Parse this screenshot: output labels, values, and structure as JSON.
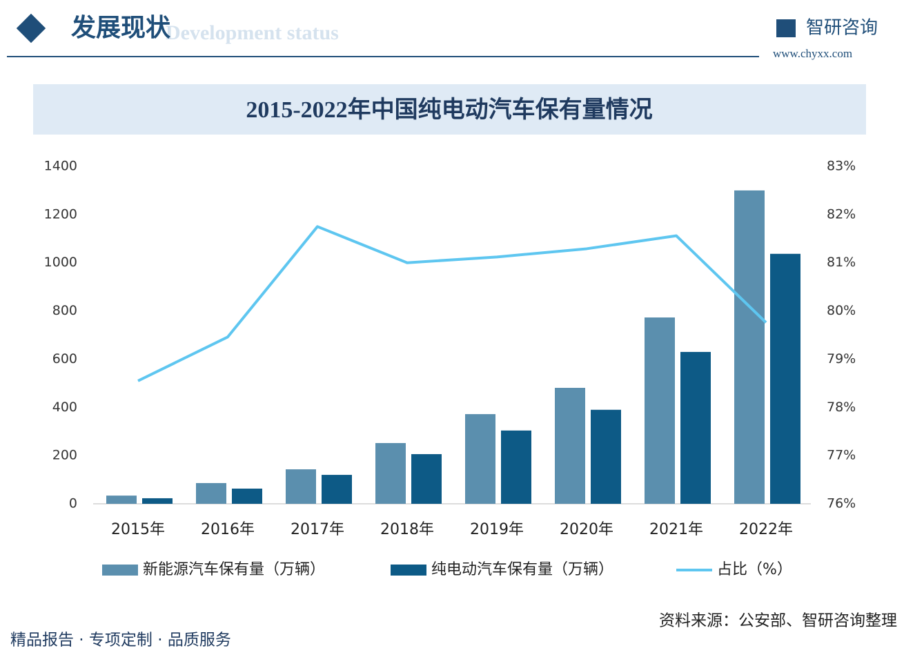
{
  "header": {
    "title": "发展现状",
    "subtitle_en": "Development status",
    "brand": "智研咨询",
    "website": "www.chyxx.com"
  },
  "chart_data": {
    "type": "bar",
    "title": "2015-2022年中国纯电动汽车保有量情况",
    "categories": [
      "2015年",
      "2016年",
      "2017年",
      "2018年",
      "2019年",
      "2020年",
      "2021年",
      "2022年"
    ],
    "series": [
      {
        "name": "新能源汽车保有量（万辆）",
        "type": "bar",
        "color": "#5b8fae",
        "values": [
          34,
          86,
          143,
          252,
          372,
          481,
          773,
          1300
        ]
      },
      {
        "name": "纯电动汽车保有量（万辆）",
        "type": "bar",
        "color": "#0d5a86",
        "values": [
          23,
          63,
          120,
          206,
          304,
          390,
          630,
          1037
        ]
      },
      {
        "name": "占比（%）",
        "type": "line",
        "axis": "y2",
        "color": "#5ec6f0",
        "values": [
          78.55,
          79.46,
          81.75,
          81.0,
          81.12,
          81.29,
          81.56,
          79.76
        ]
      }
    ],
    "ylim": [
      0,
      1400
    ],
    "yticks": [
      0,
      200,
      400,
      600,
      800,
      1000,
      1200,
      1400
    ],
    "y2lim": [
      76,
      83
    ],
    "y2ticks": [
      {
        "value": 76,
        "label": "76%"
      },
      {
        "value": 77,
        "label": "77%"
      },
      {
        "value": 78,
        "label": "78%"
      },
      {
        "value": 79,
        "label": "79%"
      },
      {
        "value": 80,
        "label": "80%"
      },
      {
        "value": 81,
        "label": "81%"
      },
      {
        "value": 82,
        "label": "82%"
      },
      {
        "value": 83,
        "label": "83%"
      }
    ],
    "legend": "bottom",
    "grid": false
  },
  "footer": {
    "source": "资料来源：公安部、智研咨询整理",
    "slogan": "精品报告 · 专项定制 · 品质服务"
  }
}
